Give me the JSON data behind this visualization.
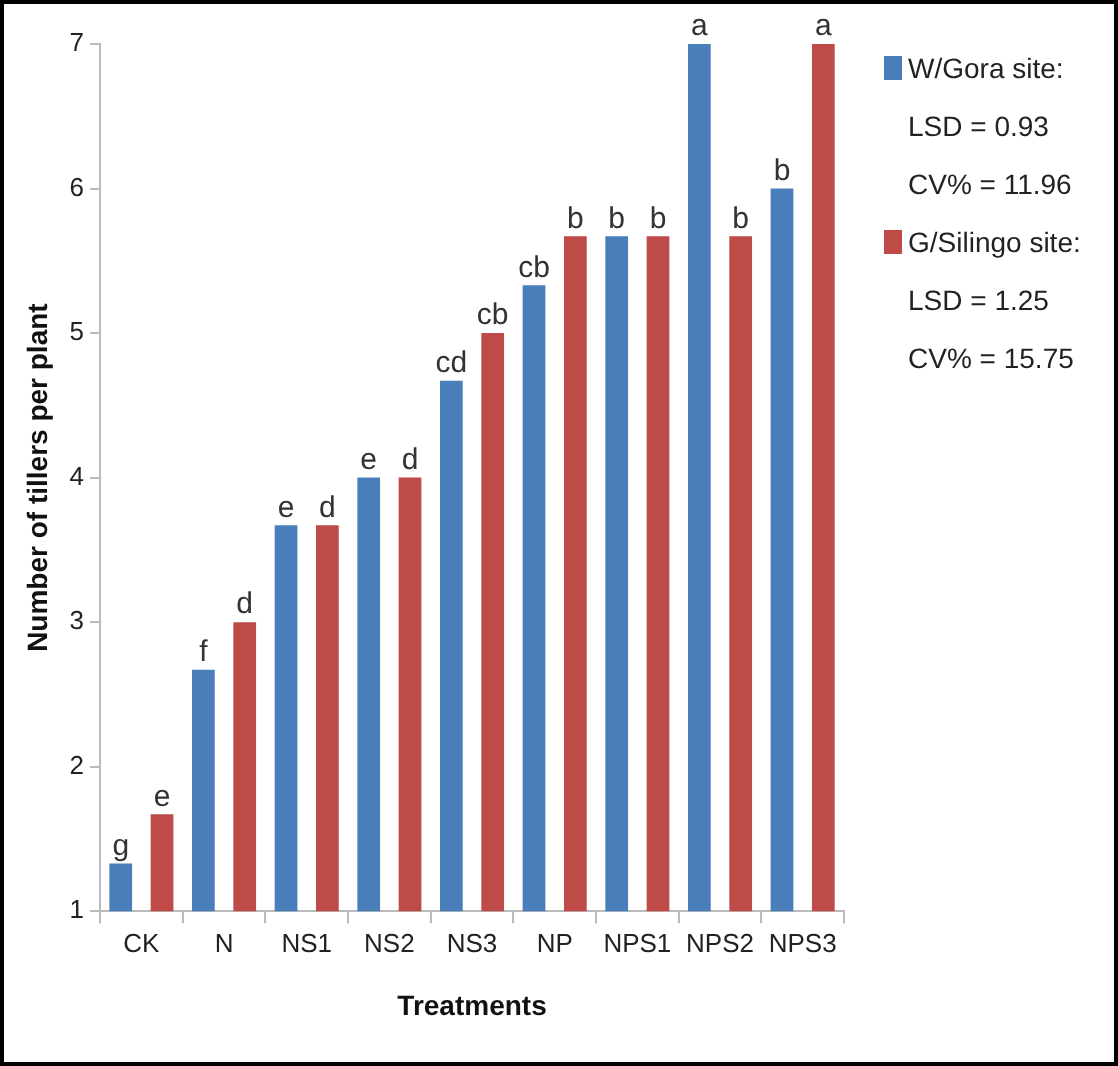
{
  "chart_data": {
    "type": "bar",
    "xlabel": "Treatments",
    "ylabel": "Number of tillers per plant",
    "categories": [
      "CK",
      "N",
      "NS1",
      "NS2",
      "NS3",
      "NP",
      "NPS1",
      "NPS2",
      "NPS3"
    ],
    "series": [
      {
        "name": "W/Gora site:",
        "color": "#4a7ebb",
        "values": [
          1.33,
          2.67,
          3.67,
          4,
          4.67,
          5.33,
          5.67,
          7,
          6
        ],
        "value_labels": [
          "g",
          "f",
          "e",
          "e",
          "cd",
          "cb",
          "b",
          "a",
          "b"
        ]
      },
      {
        "name": "G/Silingo site:",
        "color": "#be4b48",
        "values": [
          1.67,
          3,
          3.67,
          4,
          5,
          5.67,
          5.67,
          5.67,
          7
        ],
        "value_labels": [
          "e",
          "d",
          "d",
          "d",
          "cb",
          "b",
          "b",
          "b",
          "a"
        ]
      }
    ],
    "annotations": [
      "LSD = 0.93",
      "CV% = 11.96",
      "LSD = 1.25",
      "CV% = 15.75"
    ],
    "ylim": [
      1,
      7
    ],
    "yticks": [
      1,
      2,
      3,
      4,
      5,
      6,
      7
    ],
    "grid": false,
    "legend": "top right"
  }
}
